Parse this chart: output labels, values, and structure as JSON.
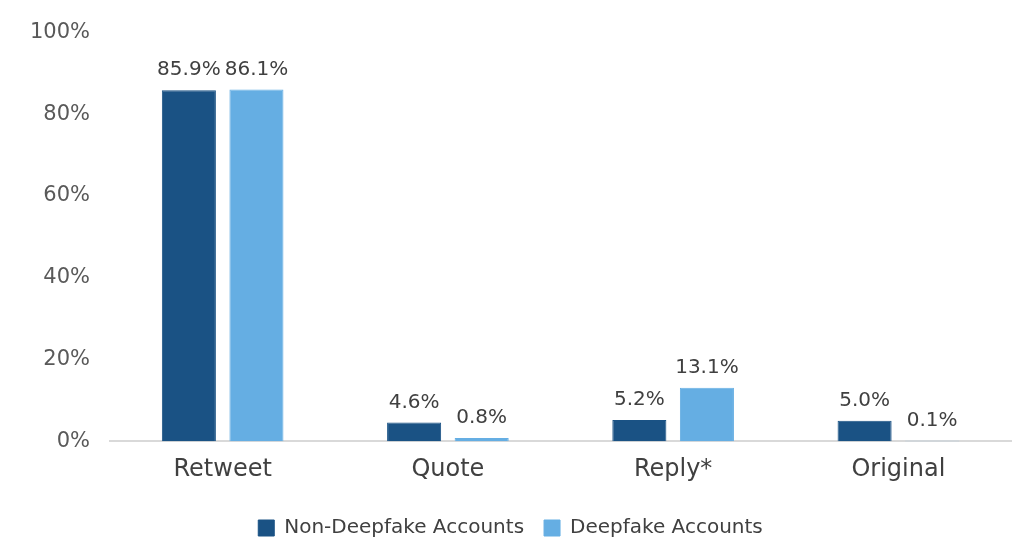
{
  "chart_data": {
    "type": "bar",
    "categories": [
      "Retweet",
      "Quote",
      "Reply*",
      "Original"
    ],
    "series": [
      {
        "name": "Non-Deepfake Accounts",
        "color": "#1a5284",
        "values": [
          85.9,
          4.6,
          5.2,
          5.0
        ],
        "value_labels": [
          "85.9%",
          "4.6%",
          "5.2%",
          "5.0%"
        ]
      },
      {
        "name": "Deepfake Accounts",
        "color": "#65aee3",
        "values": [
          86.1,
          0.8,
          13.1,
          0.1
        ],
        "value_labels": [
          "86.1%",
          "0.8%",
          "13.1%",
          "0.1%"
        ]
      }
    ],
    "ylim": [
      0,
      100
    ],
    "yticks": [
      {
        "value": 0,
        "label": "0%"
      },
      {
        "value": 20,
        "label": "20%"
      },
      {
        "value": 40,
        "label": "40%"
      },
      {
        "value": 60,
        "label": "60%"
      },
      {
        "value": 80,
        "label": "80%"
      },
      {
        "value": 100,
        "label": "100%"
      }
    ],
    "grid": false,
    "legend": "bottom"
  }
}
